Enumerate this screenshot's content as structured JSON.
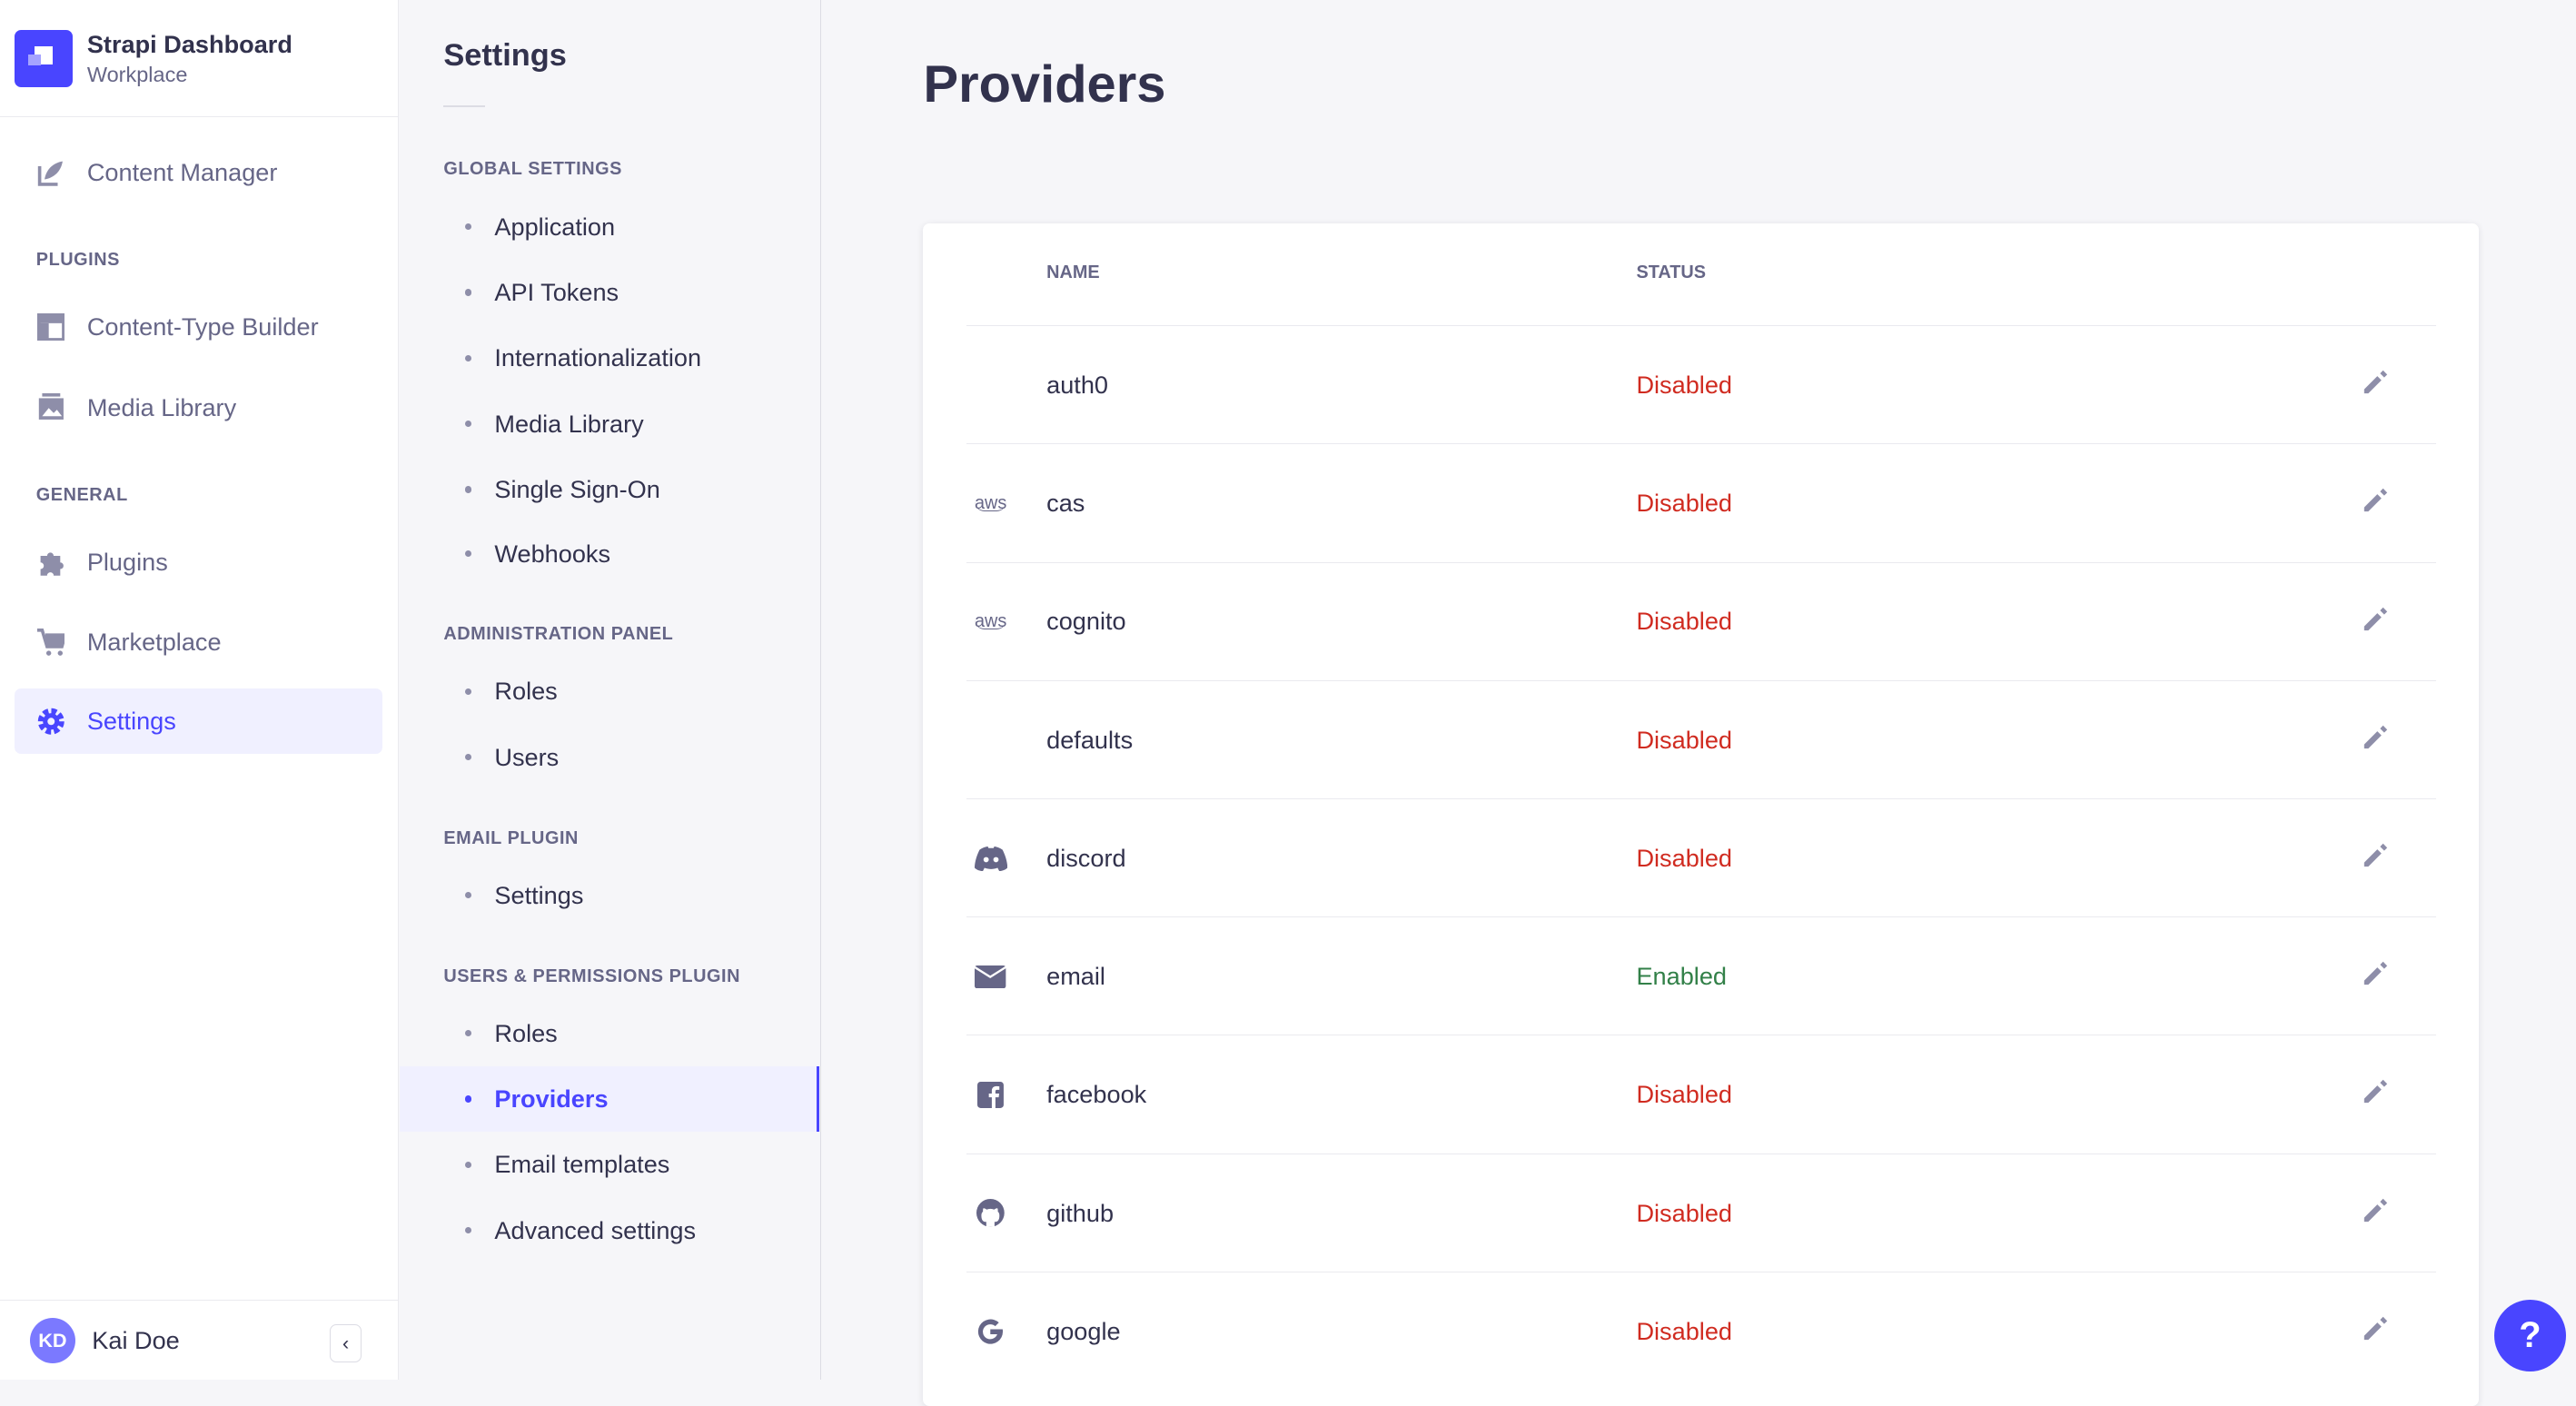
{
  "brand": {
    "title": "Strapi Dashboard",
    "subtitle": "Workplace"
  },
  "nav": {
    "content_manager": "Content Manager",
    "plugins_heading": "PLUGINS",
    "content_type_builder": "Content-Type Builder",
    "media_library": "Media Library",
    "general_heading": "GENERAL",
    "plugins": "Plugins",
    "marketplace": "Marketplace",
    "settings": "Settings"
  },
  "user": {
    "initials": "KD",
    "name": "Kai Doe",
    "collapse_icon": "chevron-left"
  },
  "settings_nav": {
    "title": "Settings",
    "sections": [
      {
        "heading": "GLOBAL SETTINGS",
        "items": [
          "Application",
          "API Tokens",
          "Internationalization",
          "Media Library",
          "Single Sign-On",
          "Webhooks"
        ]
      },
      {
        "heading": "ADMINISTRATION PANEL",
        "items": [
          "Roles",
          "Users"
        ]
      },
      {
        "heading": "EMAIL PLUGIN",
        "items": [
          "Settings"
        ]
      },
      {
        "heading": "USERS & PERMISSIONS PLUGIN",
        "items": [
          "Roles",
          "Providers",
          "Email templates",
          "Advanced settings"
        ]
      }
    ],
    "active": "Providers"
  },
  "page": {
    "title": "Providers"
  },
  "table": {
    "columns": {
      "name": "NAME",
      "status": "STATUS"
    },
    "rows": [
      {
        "icon": "",
        "name": "auth0",
        "status": "Disabled"
      },
      {
        "icon": "aws",
        "name": "cas",
        "status": "Disabled"
      },
      {
        "icon": "aws",
        "name": "cognito",
        "status": "Disabled"
      },
      {
        "icon": "",
        "name": "defaults",
        "status": "Disabled"
      },
      {
        "icon": "discord",
        "name": "discord",
        "status": "Disabled"
      },
      {
        "icon": "envelope",
        "name": "email",
        "status": "Enabled"
      },
      {
        "icon": "facebook",
        "name": "facebook",
        "status": "Disabled"
      },
      {
        "icon": "github",
        "name": "github",
        "status": "Disabled"
      },
      {
        "icon": "google",
        "name": "google",
        "status": "Disabled"
      }
    ],
    "aws_label": "aws"
  },
  "colors": {
    "accent": "#4945ff",
    "disabled": "#d02b20",
    "enabled": "#328048"
  },
  "help": {
    "label": "?"
  }
}
